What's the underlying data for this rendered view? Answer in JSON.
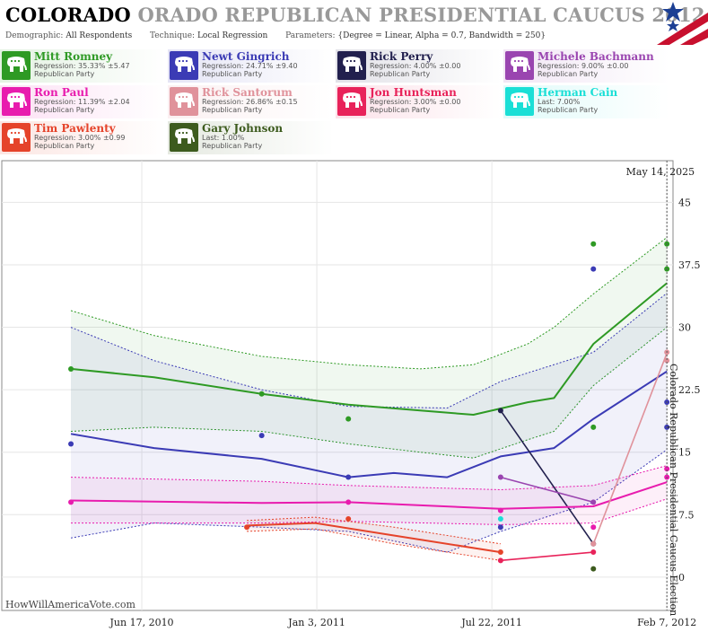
{
  "header": {
    "title_state": "COLORADO",
    "title_rest": "ORADO REPUBLICAN PRESIDENTIAL CAUCUS 2012",
    "demographic_label": "Demographic:",
    "demographic_value": "All Respondents",
    "technique_label": "Technique:",
    "technique_value": "Local Regression",
    "parameters_label": "Parameters:",
    "parameters_value": "{Degree = Linear, Alpha = 0.7, Bandwidth = 250}"
  },
  "colors": {
    "romney": "#2e9a24",
    "gingrich": "#3b3bb5",
    "perry": "#22204e",
    "bachmann": "#9a45b0",
    "paul": "#e81cae",
    "santorum": "#e0929b",
    "huntsman": "#e8235a",
    "cain": "#1adfd6",
    "pawlenty": "#e5432a",
    "johnson": "#3d5b1e"
  },
  "candidates": [
    {
      "key": "romney",
      "name": "Mitt Romney",
      "stat": "Regression: 35.33% ±5.47",
      "party": "Republican Party",
      "icon": "elephant-icon"
    },
    {
      "key": "gingrich",
      "name": "Newt Gingrich",
      "stat": "Regression: 24.71% ±9.40",
      "party": "Republican Party",
      "icon": "elephant-icon"
    },
    {
      "key": "perry",
      "name": "Rick Perry",
      "stat": "Regression: 4.00% ±0.00",
      "party": "Republican Party",
      "icon": "elephant-icon"
    },
    {
      "key": "bachmann",
      "name": "Michele Bachmann",
      "stat": "Regression: 9.00% ±0.00",
      "party": "Republican Party",
      "icon": "elephant-icon"
    },
    {
      "key": "paul",
      "name": "Ron Paul",
      "stat": "Regression: 11.39% ±2.04",
      "party": "Republican Party",
      "icon": "elephant-icon"
    },
    {
      "key": "santorum",
      "name": "Rick Santorum",
      "stat": "Regression: 26.86% ±0.15",
      "party": "Republican Party",
      "icon": "elephant-icon"
    },
    {
      "key": "huntsman",
      "name": "Jon Huntsman",
      "stat": "Regression: 3.00% ±0.00",
      "party": "Republican Party",
      "icon": "elephant-icon"
    },
    {
      "key": "cain",
      "name": "Herman Cain",
      "stat": "Last: 7.00%",
      "party": "Republican Party",
      "icon": "elephant-icon"
    },
    {
      "key": "pawlenty",
      "name": "Tim Pawlenty",
      "stat": "Regression: 3.00% ±0.99",
      "party": "Republican Party",
      "icon": "elephant-icon"
    },
    {
      "key": "johnson",
      "name": "Gary Johnson",
      "stat": "Last: 1.00%",
      "party": "Republican Party",
      "icon": "elephant-icon"
    }
  ],
  "chart_data": {
    "type": "scatter",
    "xlim": [
      "2010-01-08",
      "2012-02-14"
    ],
    "ylim": [
      -4,
      50
    ],
    "x_ticks": [
      {
        "date": "2010-06-17",
        "label": "Jun 17, 2010"
      },
      {
        "date": "2011-01-03",
        "label": "Jan 3, 2011"
      },
      {
        "date": "2011-07-22",
        "label": "Jul 22, 2011"
      },
      {
        "date": "2012-02-07",
        "label": "Feb 7, 2012"
      }
    ],
    "y_ticks": [
      0,
      7.5,
      15,
      22.5,
      30,
      37.5,
      45
    ],
    "event_date": "2012-02-07",
    "event_label": "Colorado Republican Presidential Caucus Election",
    "current_date_label": "May 14, 2025",
    "credit": "HowWillAmericaVote.com",
    "series": [
      {
        "key": "romney",
        "name": "Mitt Romney",
        "points": [
          [
            "2010-03-28",
            25
          ],
          [
            "2010-11-01",
            22
          ],
          [
            "2011-02-08",
            19
          ],
          [
            "2011-11-15",
            18
          ],
          [
            "2011-11-15",
            40
          ],
          [
            "2012-02-07",
            40
          ],
          [
            "2012-02-07",
            37
          ]
        ],
        "fit": [
          [
            "2010-03-28",
            25
          ],
          [
            "2010-07-01",
            24
          ],
          [
            "2010-11-01",
            22
          ],
          [
            "2011-02-08",
            20.7
          ],
          [
            "2011-05-01",
            20
          ],
          [
            "2011-07-01",
            19.5
          ],
          [
            "2011-09-01",
            21
          ],
          [
            "2011-10-01",
            21.5
          ],
          [
            "2011-11-15",
            28
          ],
          [
            "2012-02-07",
            35.3
          ]
        ],
        "fit_upper": [
          [
            "2010-03-28",
            32
          ],
          [
            "2010-07-01",
            29
          ],
          [
            "2010-11-01",
            26.5
          ],
          [
            "2011-02-08",
            25.5
          ],
          [
            "2011-05-01",
            25
          ],
          [
            "2011-07-01",
            25.5
          ],
          [
            "2011-09-01",
            28
          ],
          [
            "2011-10-01",
            30
          ],
          [
            "2011-11-15",
            34
          ],
          [
            "2012-02-07",
            40.8
          ]
        ],
        "fit_lower": [
          [
            "2010-03-28",
            17.5
          ],
          [
            "2010-07-01",
            18
          ],
          [
            "2010-11-01",
            17.5
          ],
          [
            "2011-02-08",
            16
          ],
          [
            "2011-05-01",
            15
          ],
          [
            "2011-07-01",
            14.3
          ],
          [
            "2011-09-01",
            16.5
          ],
          [
            "2011-10-01",
            17.5
          ],
          [
            "2011-11-15",
            23
          ],
          [
            "2012-02-07",
            30
          ]
        ]
      },
      {
        "key": "gingrich",
        "name": "Newt Gingrich",
        "points": [
          [
            "2010-03-28",
            16
          ],
          [
            "2010-11-01",
            17
          ],
          [
            "2011-02-08",
            12
          ],
          [
            "2011-08-01",
            6
          ],
          [
            "2011-11-15",
            37
          ],
          [
            "2012-02-07",
            21
          ],
          [
            "2012-02-07",
            18
          ]
        ],
        "fit": [
          [
            "2010-03-28",
            17.2
          ],
          [
            "2010-07-01",
            15.5
          ],
          [
            "2010-11-01",
            14.2
          ],
          [
            "2011-02-08",
            12
          ],
          [
            "2011-04-01",
            12.5
          ],
          [
            "2011-06-01",
            12
          ],
          [
            "2011-08-01",
            14.5
          ],
          [
            "2011-10-01",
            15.5
          ],
          [
            "2011-11-15",
            19
          ],
          [
            "2012-02-07",
            24.7
          ]
        ],
        "fit_upper": [
          [
            "2010-03-28",
            30
          ],
          [
            "2010-07-01",
            26
          ],
          [
            "2010-11-01",
            22.5
          ],
          [
            "2011-02-08",
            20.5
          ],
          [
            "2011-06-01",
            20.3
          ],
          [
            "2011-08-01",
            23.5
          ],
          [
            "2011-11-15",
            27
          ],
          [
            "2012-02-07",
            34.1
          ]
        ],
        "fit_lower": [
          [
            "2010-03-28",
            4.7
          ],
          [
            "2010-07-01",
            6.5
          ],
          [
            "2010-11-01",
            6
          ],
          [
            "2011-02-08",
            5.5
          ],
          [
            "2011-06-01",
            3
          ],
          [
            "2011-08-01",
            5.5
          ],
          [
            "2011-11-15",
            9
          ],
          [
            "2012-02-07",
            15.3
          ]
        ]
      },
      {
        "key": "perry",
        "name": "Rick Perry",
        "points": [
          [
            "2011-08-01",
            20
          ],
          [
            "2011-11-15",
            4
          ]
        ],
        "fit": [
          [
            "2011-08-01",
            20
          ],
          [
            "2011-11-15",
            4
          ]
        ]
      },
      {
        "key": "bachmann",
        "name": "Michele Bachmann",
        "points": [
          [
            "2011-08-01",
            12
          ],
          [
            "2011-11-15",
            9
          ]
        ],
        "fit": [
          [
            "2011-08-01",
            12
          ],
          [
            "2011-11-15",
            9
          ]
        ]
      },
      {
        "key": "paul",
        "name": "Ron Paul",
        "points": [
          [
            "2010-03-28",
            9
          ],
          [
            "2011-02-08",
            9
          ],
          [
            "2011-08-01",
            8
          ],
          [
            "2011-11-15",
            6
          ],
          [
            "2012-02-07",
            13
          ],
          [
            "2012-02-07",
            12
          ]
        ],
        "fit": [
          [
            "2010-03-28",
            9.2
          ],
          [
            "2010-11-01",
            8.9
          ],
          [
            "2011-02-08",
            9
          ],
          [
            "2011-08-01",
            8.2
          ],
          [
            "2011-11-15",
            8.5
          ],
          [
            "2012-02-07",
            11.4
          ]
        ],
        "fit_upper": [
          [
            "2010-03-28",
            12
          ],
          [
            "2010-11-01",
            11.5
          ],
          [
            "2011-02-08",
            11
          ],
          [
            "2011-08-01",
            10.5
          ],
          [
            "2011-11-15",
            11
          ],
          [
            "2012-02-07",
            13.4
          ]
        ],
        "fit_lower": [
          [
            "2010-03-28",
            6.5
          ],
          [
            "2010-11-01",
            6.5
          ],
          [
            "2011-02-08",
            6.7
          ],
          [
            "2011-08-01",
            6.3
          ],
          [
            "2011-11-15",
            6.5
          ],
          [
            "2012-02-07",
            9.4
          ]
        ]
      },
      {
        "key": "santorum",
        "name": "Rick Santorum",
        "points": [
          [
            "2011-11-15",
            4
          ],
          [
            "2012-02-07",
            27
          ],
          [
            "2012-02-07",
            26
          ]
        ],
        "fit": [
          [
            "2011-11-15",
            4
          ],
          [
            "2012-02-07",
            26.9
          ]
        ]
      },
      {
        "key": "huntsman",
        "name": "Jon Huntsman",
        "points": [
          [
            "2011-08-01",
            2
          ],
          [
            "2011-11-15",
            3
          ]
        ],
        "fit": [
          [
            "2011-08-01",
            2
          ],
          [
            "2011-11-15",
            3
          ]
        ]
      },
      {
        "key": "cain",
        "name": "Herman Cain",
        "points": [
          [
            "2011-08-01",
            7
          ]
        ]
      },
      {
        "key": "pawlenty",
        "name": "Tim Pawlenty",
        "points": [
          [
            "2010-10-15",
            6
          ],
          [
            "2011-02-08",
            7
          ],
          [
            "2011-08-01",
            3
          ]
        ],
        "fit": [
          [
            "2010-10-15",
            6.2
          ],
          [
            "2011-01-01",
            6.5
          ],
          [
            "2011-04-01",
            5
          ],
          [
            "2011-08-01",
            3
          ]
        ],
        "fit_upper": [
          [
            "2010-10-15",
            6.8
          ],
          [
            "2011-01-01",
            7.2
          ],
          [
            "2011-04-01",
            6
          ],
          [
            "2011-08-01",
            4
          ]
        ],
        "fit_lower": [
          [
            "2010-10-15",
            5.5
          ],
          [
            "2011-01-01",
            5.8
          ],
          [
            "2011-04-01",
            4
          ],
          [
            "2011-08-01",
            2
          ]
        ]
      },
      {
        "key": "johnson",
        "name": "Gary Johnson",
        "points": [
          [
            "2011-11-15",
            1
          ]
        ]
      }
    ]
  }
}
